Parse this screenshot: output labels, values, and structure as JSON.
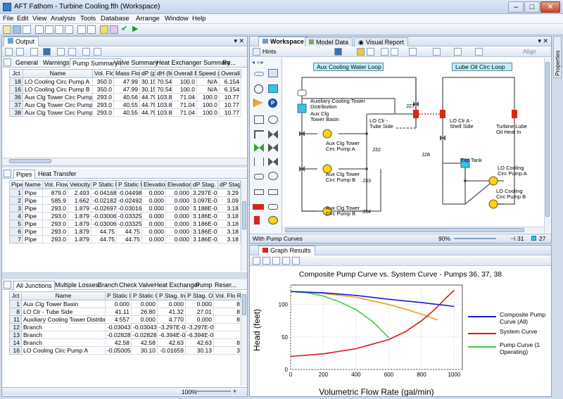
{
  "window": {
    "title": "AFT Fathom - Turbine Cooling.fth (Workspace)"
  },
  "menu": [
    "File",
    "Edit",
    "View",
    "Analysis",
    "Tools",
    "Database",
    "Arrange",
    "Window",
    "Help"
  ],
  "output": {
    "title": "Output",
    "tabs": [
      "General",
      "Warnings",
      "Pump Summary",
      "Valve Summary",
      "Heat Exchanger Summary",
      "Re..."
    ],
    "active_tab": "Pump Summary",
    "pump_headers": [
      "Jct",
      "Name",
      "Vol. Flow (gal/min)",
      "Mass Flow (lbm/sec)",
      "dP (psid)",
      "dH (feet)",
      "Overall Efficiency (Percent)",
      "Speed (Percent)",
      "Overall Power (hp)"
    ],
    "pump_rows": [
      [
        "18",
        "LO Cooling Circ Pump A",
        "350.0",
        "47.99",
        "30.15",
        "70.54",
        "100.0",
        "N/A",
        "6.154"
      ],
      [
        "16",
        "LO Cooling Circ Pump B",
        "350.0",
        "47.99",
        "30.15",
        "70.54",
        "100.0",
        "N/A",
        "6.154"
      ],
      [
        "36",
        "Aux Clg Tower Circ Pump A",
        "293.0",
        "40.56",
        "44.79",
        "103.8",
        "71.04",
        "100.0",
        "10.77"
      ],
      [
        "37",
        "Aux Clg Tower Circ Pump B",
        "293.0",
        "40.55",
        "44.79",
        "103.8",
        "71.04",
        "100.0",
        "10.77"
      ],
      [
        "38",
        "Aux Clg Tower Circ Pump B",
        "293.0",
        "40.55",
        "44.79",
        "103.8",
        "71.04",
        "100.0",
        "10.77"
      ]
    ],
    "pipes_tabs": [
      "Pipes",
      "Heat Transfer"
    ],
    "pipe_headers": [
      "Pipe",
      "Name",
      "Vol. Flow Rate (gal/min)",
      "Velocity (feet/sec)",
      "P Static Max (psig)",
      "P Static Min (psig)",
      "Elevation Inlet (feet)",
      "Elevation Outlet (feet)",
      "dP Stag. Total (psid)",
      "dP Stag. To (ps"
    ],
    "pipe_rows": [
      [
        "1",
        "Pipe",
        "879.0",
        "2.493",
        "-0.04168",
        "-0.04498",
        "0.000",
        "0.000",
        "3.297E-03",
        "3.29"
      ],
      [
        "2",
        "Pipe",
        "585.9",
        "1.662",
        "-0.02182",
        "-0.02492",
        "0.000",
        "0.000",
        "3.097E-03",
        "3.09"
      ],
      [
        "3",
        "Pipe",
        "293.0",
        "1.879",
        "-0.02697",
        "-0.03016",
        "0.000",
        "0.000",
        "3.188E-03",
        "3.18"
      ],
      [
        "4",
        "Pipe",
        "293.0",
        "1.879",
        "-0.03006",
        "-0.03325",
        "0.000",
        "0.000",
        "3.186E-03",
        "3.18"
      ],
      [
        "5",
        "Pipe",
        "293.0",
        "1.879",
        "-0.03006",
        "-0.03325",
        "0.000",
        "0.000",
        "3.186E-03",
        "3.18"
      ],
      [
        "6",
        "Pipe",
        "293.0",
        "1.879",
        "44.75",
        "44.75",
        "0.000",
        "0.000",
        "3.186E-03",
        "3.18"
      ],
      [
        "7",
        "Pipe",
        "293.0",
        "1.879",
        "44.75",
        "44.75",
        "0.000",
        "0.000",
        "3.186E-03",
        "3.18"
      ]
    ],
    "junction_tabs": [
      "All Junctions",
      "Multiple Losses",
      "Branch",
      "Check Valve",
      "Heat Exchanger",
      "Pump",
      "Reser..."
    ],
    "junction_headers": [
      "Jct",
      "Name",
      "P Static In (psig)",
      "P Static Out (psig)",
      "P Stag. In (psig)",
      "P Stag. Out (psig)",
      "Vol. Flo Rate Thru (gal/mi"
    ],
    "junction_rows": [
      [
        "1",
        "Aux Clg Tower Basin",
        "0.000",
        "0.000",
        "0.000",
        "0.000",
        "8"
      ],
      [
        "8",
        "LO Clr - Tube Side",
        "41.11",
        "26.80",
        "41.32",
        "27.01",
        "8"
      ],
      [
        "11",
        "Auxiliary Cooling Tower Distribution",
        "4.557",
        "0.000",
        "4.770",
        "0.000",
        "8"
      ],
      [
        "12",
        "Branch",
        "-0.03043",
        "-0.03043",
        "-3.297E-03",
        "-3.297E-03",
        ""
      ],
      [
        "13",
        "Branch",
        "-0.02828",
        "-0.02828",
        "-6.394E-03",
        "-6.394E-03",
        ""
      ],
      [
        "14",
        "Branch",
        "42.58",
        "42.58",
        "42.63",
        "42.63",
        "8"
      ],
      [
        "16",
        "LO Cooling Circ Pump A",
        "-0.05005",
        "30.10",
        "-0.01659",
        "30.13",
        "3"
      ]
    ],
    "zoom": "100%"
  },
  "workspace": {
    "tabs": [
      "Workspace",
      "Model Data",
      "Visual Report"
    ],
    "hints": "Hints",
    "align": "Align",
    "loops": [
      "Aux Cooling Water Loop",
      "Lube Oil Circ Loop"
    ],
    "labels": {
      "tower_dist": "Auxiliary Cooling Tower Distribution",
      "tower_basin": "Aux Clg Tower Basin",
      "clr_tube": "LO Clr - Tube Side",
      "clr_shell": "LO Clr A - Shell Side",
      "turbine": "Turbine Lube Oil Heat In",
      "pump_a": "Aux Clg Tower Circ Pump A",
      "pump_b1": "Aux Clg Tower Circ Pump B",
      "pump_b2": "Aux Clg Tower Circ Pump B",
      "exp_tank": "Exp Tank",
      "lo_pump_a": "LO Cooling Circ Pump A",
      "lo_pump_b": "LO Cooling Circ Pump B",
      "j27": "J27",
      "j28": "J28",
      "j32": "J32",
      "j33": "J33",
      "j34": "J34"
    },
    "status_left": "With Pump Curves",
    "zoom": "90%",
    "count_pipes": "31",
    "count_jct": "27"
  },
  "graph": {
    "tab": "Graph Results",
    "sidebar": "Properties"
  },
  "chart_data": {
    "type": "line",
    "title": "Composite Pump Curve vs. System Curve - Pumps 36, 37, 38",
    "xlabel": "Volumetric Flow Rate (gal/min)",
    "ylabel": "Head (feet)",
    "xlim": [
      0,
      1050
    ],
    "ylim": [
      0,
      130
    ],
    "xticks": [
      0,
      200,
      400,
      600,
      800,
      1000
    ],
    "yticks": [
      0,
      50,
      100
    ],
    "grid": true,
    "legend_position": "right",
    "series": [
      {
        "name": "Composite Pump Curve (All)",
        "color": "#1a1ad6",
        "x": [
          0,
          200,
          400,
          600,
          800,
          1000
        ],
        "y": [
          120,
          118,
          114,
          108,
          103,
          97
        ]
      },
      {
        "name": "System Curve",
        "color": "#e0141e",
        "x": [
          0,
          200,
          400,
          600,
          700,
          800,
          880,
          950,
          1000
        ],
        "y": [
          20,
          24,
          32,
          46,
          58,
          75,
          92,
          110,
          122
        ]
      },
      {
        "name": "Pump Curve (1 Operating)",
        "color": "#3ecf3e",
        "x": [
          0,
          100,
          200,
          300,
          400,
          500,
          600
        ],
        "y": [
          120,
          118,
          113,
          104,
          92,
          74,
          49
        ]
      },
      {
        "name": "",
        "color": "#f0a020",
        "x": [
          0,
          200,
          400,
          600,
          700,
          800,
          900
        ],
        "y": [
          120,
          117,
          111,
          100,
          93,
          85,
          76
        ]
      }
    ]
  }
}
